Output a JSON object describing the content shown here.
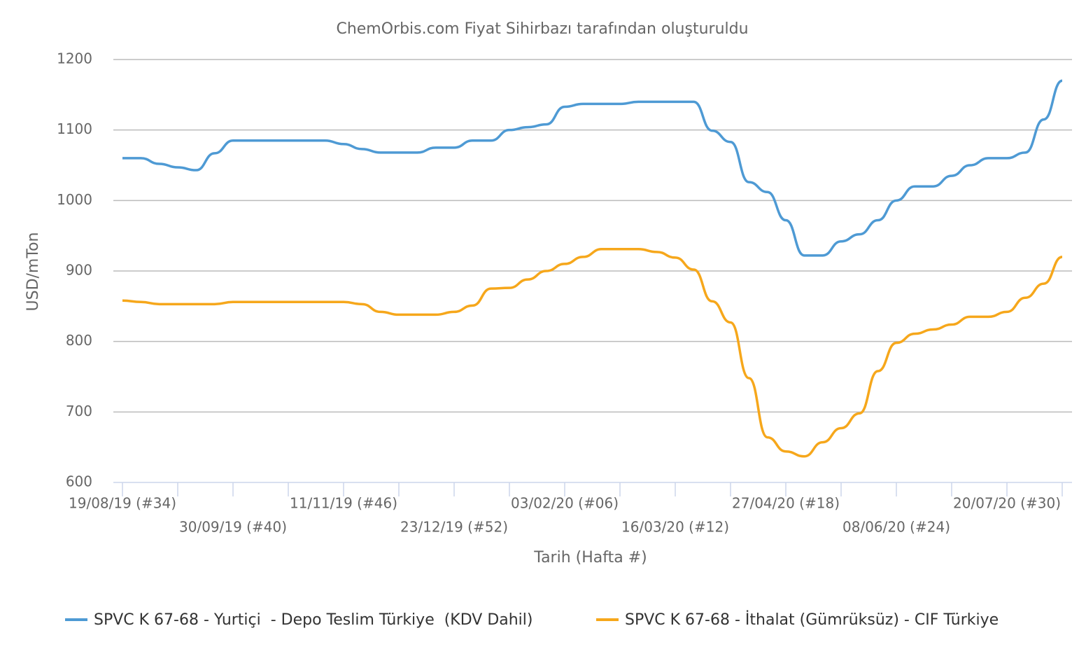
{
  "chart_data": {
    "type": "line",
    "title": "ChemOrbis.com Fiyat Sihirbazı tarafından oluşturuldu",
    "y_label": "USD/mTon",
    "x_label": "Tarih (Hafta #)",
    "categories": [
      "19/08/19 (#34)",
      null,
      null,
      null,
      null,
      null,
      "30/09/19 (#40)",
      null,
      null,
      null,
      null,
      null,
      "11/11/19 (#46)",
      null,
      null,
      null,
      null,
      null,
      "23/12/19 (#52)",
      null,
      null,
      null,
      null,
      null,
      "03/02/20 (#06)",
      null,
      null,
      null,
      null,
      null,
      "16/03/20 (#12)",
      null,
      null,
      null,
      null,
      null,
      "27/04/20 (#18)",
      null,
      null,
      null,
      null,
      null,
      "08/06/20 (#24)",
      null,
      null,
      null,
      null,
      null,
      "20/07/20 (#30)",
      null,
      null,
      null
    ],
    "series": [
      {
        "name": "SPVC K 67-68 - Yurtiçi  - Depo Teslim Türkiye  (KDV Dahil)",
        "color": "#4e9ad4",
        "values": [
          1060,
          1060,
          1052,
          1047,
          1043,
          1067,
          1085,
          1085,
          1085,
          1085,
          1085,
          1085,
          1080,
          1073,
          1068,
          1068,
          1068,
          1075,
          1075,
          1085,
          1085,
          1100,
          1104,
          1108,
          1133,
          1137,
          1137,
          1137,
          1140,
          1140,
          1140,
          1140,
          1099,
          1083,
          1026,
          1012,
          972,
          922,
          922,
          942,
          952,
          972,
          1000,
          1020,
          1020,
          1035,
          1050,
          1060,
          1060,
          1068,
          1115,
          1170
        ]
      },
      {
        "name": "SPVC K 67-68 - İthalat (Gümrüksüz) - CIF Türkiye",
        "color": "#f6a71b",
        "values": [
          858,
          856,
          853,
          853,
          853,
          853,
          856,
          856,
          856,
          856,
          856,
          856,
          856,
          853,
          842,
          838,
          838,
          838,
          842,
          851,
          875,
          876,
          888,
          900,
          910,
          920,
          931,
          931,
          931,
          927,
          919,
          902,
          857,
          827,
          748,
          664,
          644,
          637,
          657,
          677,
          698,
          758,
          798,
          811,
          817,
          824,
          835,
          835,
          842,
          862,
          882,
          920
        ]
      }
    ],
    "ylim": [
      600,
      1200
    ],
    "yticks": [
      600,
      700,
      800,
      900,
      1000,
      1100,
      1200
    ],
    "grid": true,
    "legend": "bottom"
  }
}
